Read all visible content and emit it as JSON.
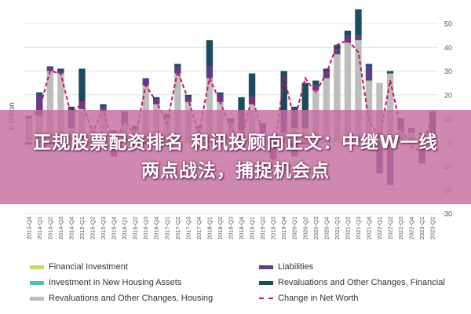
{
  "chart_data": {
    "type": "bar",
    "ylabel": "€ Billion",
    "ylim": [
      -30,
      50
    ],
    "yticks": [
      -30,
      -20,
      -10,
      0,
      10,
      20,
      30,
      40,
      50
    ],
    "grid": true,
    "legend_position": "bottom",
    "categories": [
      "2013-Q4",
      "2014-Q1",
      "2014-Q2",
      "2014-Q3",
      "2014-Q4",
      "2015-Q1",
      "2015-Q2",
      "2015-Q3",
      "2015-Q4",
      "2016-Q1",
      "2016-Q2",
      "2016-Q3",
      "2016-Q4",
      "2017-Q1",
      "2017-Q2",
      "2017-Q3",
      "2017-Q4",
      "2018-Q1",
      "2018-Q2",
      "2018-Q3",
      "2018-Q4",
      "2019-Q1",
      "2019-Q2",
      "2019-Q3",
      "2019-Q4",
      "2020-Q1",
      "2020-Q2",
      "2020-Q3",
      "2020-Q4",
      "2021-Q1",
      "2021-Q2",
      "2021-Q3",
      "2021-Q4",
      "2022-Q1",
      "2022-Q2",
      "2022-Q3",
      "2022-Q4",
      "2023-Q1",
      "2023-Q2"
    ],
    "series": [
      {
        "name": "Financial Investment",
        "color": "#c5d86d",
        "kind": "bar",
        "values": [
          1,
          1,
          1,
          1,
          1,
          1,
          1,
          1,
          1,
          1,
          1,
          1,
          1,
          1,
          1,
          1,
          1,
          1,
          1,
          1,
          1,
          1,
          1,
          1,
          1,
          1,
          1,
          1,
          1,
          1,
          1,
          1,
          1,
          1,
          1,
          1,
          1,
          1,
          1
        ]
      },
      {
        "name": "Investment in New Housing Assets",
        "color": "#4fc1c0",
        "kind": "bar",
        "values": [
          1,
          1,
          1,
          1,
          1,
          1,
          1,
          1,
          1,
          1,
          1,
          1,
          1,
          1,
          1,
          1,
          1,
          1,
          1,
          1,
          1,
          1,
          1,
          1,
          1,
          1,
          1,
          1,
          1,
          1,
          1,
          1,
          1,
          1,
          1,
          1,
          1,
          1,
          1
        ]
      },
      {
        "name": "Revaluations and Other Changes, Housing",
        "color": "#bdbdbd",
        "kind": "bar",
        "values": [
          8,
          9,
          28,
          27,
          4,
          12,
          5,
          11,
          2,
          6,
          3,
          22,
          14,
          8,
          27,
          15,
          4,
          25,
          15,
          6,
          3,
          14,
          2,
          1,
          2,
          4,
          4,
          20,
          25,
          35,
          40,
          41,
          24,
          23,
          27,
          3,
          2,
          1,
          1
        ]
      },
      {
        "name": "Liabilities",
        "color": "#5c3f85",
        "kind": "bar",
        "values": [
          -1,
          9,
          2,
          1,
          7,
          3,
          -2,
          2,
          -6,
          4,
          -2,
          3,
          2,
          1,
          3,
          2,
          -1,
          5,
          3,
          1,
          -2,
          3,
          2,
          -4,
          5,
          -6,
          -1,
          2,
          3,
          2,
          3,
          2,
          6,
          -12,
          -18,
          3,
          1,
          -9,
          2
        ]
      },
      {
        "name": "Revaluations and Other Changes, Financial",
        "color": "#1c4a5e",
        "kind": "bar",
        "values": [
          1,
          1,
          -1,
          1,
          2,
          14,
          -1,
          1,
          1,
          1,
          2,
          -1,
          1,
          1,
          1,
          1,
          1,
          11,
          1,
          1,
          14,
          10,
          2,
          -3,
          21,
          9,
          19,
          2,
          1,
          2,
          2,
          11,
          1,
          -1,
          1,
          2,
          1,
          1,
          8
        ]
      },
      {
        "name": "Change in Net Worth",
        "color": "#c2185b",
        "kind": "line",
        "values": [
          10,
          14,
          30,
          29,
          11,
          17,
          4,
          14,
          -3,
          10,
          2,
          24,
          17,
          8,
          30,
          18,
          4,
          27,
          17,
          6,
          1,
          19,
          4,
          -8,
          28,
          9,
          27,
          21,
          29,
          41,
          43,
          38,
          9,
          2,
          26,
          6,
          -2,
          -4,
          13
        ]
      }
    ]
  },
  "legend": [
    {
      "label": "Financial Investment",
      "color": "#c5d86d",
      "kind": "bar"
    },
    {
      "label": "Liabilities",
      "color": "#5c3f85",
      "kind": "bar"
    },
    {
      "label": "Investment in New Housing Assets",
      "color": "#4fc1c0",
      "kind": "bar"
    },
    {
      "label": "Revaluations and Other Changes, Financial",
      "color": "#1c4a5e",
      "kind": "bar"
    },
    {
      "label": "Revaluations and Other Changes, Housing",
      "color": "#bdbdbd",
      "kind": "bar"
    },
    {
      "label": "Change in Net Worth",
      "color": "#c2185b",
      "kind": "line"
    }
  ],
  "overlay": {
    "line1": "正规股票配资排名  和讯投顾向正文：中继W一线",
    "line2": "两点战法，捕捉机会点"
  }
}
